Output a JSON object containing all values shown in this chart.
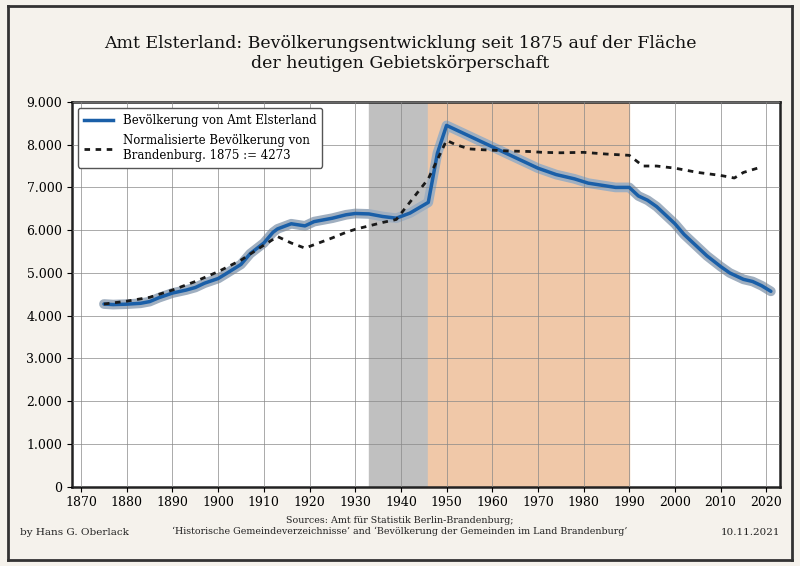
{
  "title": "Amt Elsterland: Bevölkerungsentwicklung seit 1875 auf der Fläche\nder heutigen Gebietskörperschaft",
  "xlim": [
    1868,
    2023
  ],
  "ylim": [
    0,
    9000
  ],
  "yticks": [
    0,
    1000,
    2000,
    3000,
    4000,
    5000,
    6000,
    7000,
    8000,
    9000
  ],
  "ytick_labels": [
    "0",
    "1.000",
    "2.000",
    "3.000",
    "4.000",
    "5.000",
    "6.000",
    "7.000",
    "8.000",
    "9.000"
  ],
  "xticks": [
    1870,
    1880,
    1890,
    1900,
    1910,
    1920,
    1930,
    1940,
    1950,
    1960,
    1970,
    1980,
    1990,
    2000,
    2010,
    2020
  ],
  "gray_shade": [
    1933,
    1946
  ],
  "orange_shade": [
    1946,
    1990
  ],
  "gray_color": "#c0c0c0",
  "orange_color": "#f0c8a8",
  "blue_line_color": "#1a5fa8",
  "blue_shadow_color": "#a0afc0",
  "dot_line_color": "#1a1a1a",
  "background_color": "#ffffff",
  "outer_background": "#f5f2ec",
  "legend_line1": "Bevölkerung von Amt Elsterland",
  "legend_line2": "Normalisierte Bevölkerung von\nBrandenburg. 1875 := 4273",
  "footer_left": "by Hans G. Oberlack",
  "footer_center": "Sources: Amt für Statistik Berlin-Brandenburg;\n‘Historische Gemeindeverzeichnisse’ and ‘Bevölkerung der Gemeinden im Land Brandenburg’",
  "footer_right": "10.11.2021",
  "blue_x": [
    1875,
    1877,
    1880,
    1883,
    1885,
    1887,
    1890,
    1893,
    1895,
    1897,
    1900,
    1902,
    1905,
    1907,
    1910,
    1912,
    1913,
    1916,
    1919,
    1921,
    1925,
    1928,
    1930,
    1933,
    1936,
    1939,
    1942,
    1946,
    1948,
    1950,
    1952,
    1955,
    1958,
    1960,
    1963,
    1966,
    1970,
    1974,
    1978,
    1981,
    1984,
    1987,
    1990,
    1992,
    1994,
    1996,
    1998,
    2000,
    2002,
    2005,
    2007,
    2010,
    2012,
    2015,
    2017,
    2019,
    2021
  ],
  "blue_y": [
    4273,
    4260,
    4270,
    4290,
    4330,
    4420,
    4530,
    4600,
    4660,
    4760,
    4870,
    5000,
    5200,
    5450,
    5700,
    5950,
    6030,
    6150,
    6100,
    6200,
    6280,
    6360,
    6390,
    6380,
    6320,
    6280,
    6400,
    6650,
    7800,
    8450,
    8350,
    8200,
    8050,
    7950,
    7800,
    7650,
    7450,
    7300,
    7200,
    7100,
    7050,
    7000,
    7000,
    6800,
    6700,
    6550,
    6350,
    6150,
    5900,
    5600,
    5400,
    5150,
    5000,
    4850,
    4800,
    4700,
    4570
  ],
  "dot_x": [
    1875,
    1880,
    1885,
    1890,
    1895,
    1900,
    1905,
    1910,
    1913,
    1916,
    1919,
    1925,
    1928,
    1930,
    1933,
    1936,
    1939,
    1946,
    1950,
    1952,
    1955,
    1958,
    1960,
    1964,
    1968,
    1971,
    1975,
    1980,
    1985,
    1990,
    1993,
    1996,
    2000,
    2005,
    2010,
    2013,
    2015,
    2019
  ],
  "dot_y": [
    4273,
    4340,
    4430,
    4600,
    4800,
    5030,
    5300,
    5650,
    5850,
    5700,
    5580,
    5820,
    5950,
    6020,
    6100,
    6180,
    6250,
    7200,
    8100,
    8000,
    7900,
    7880,
    7870,
    7850,
    7840,
    7820,
    7810,
    7820,
    7780,
    7750,
    7500,
    7500,
    7450,
    7350,
    7280,
    7220,
    7350,
    7480
  ]
}
